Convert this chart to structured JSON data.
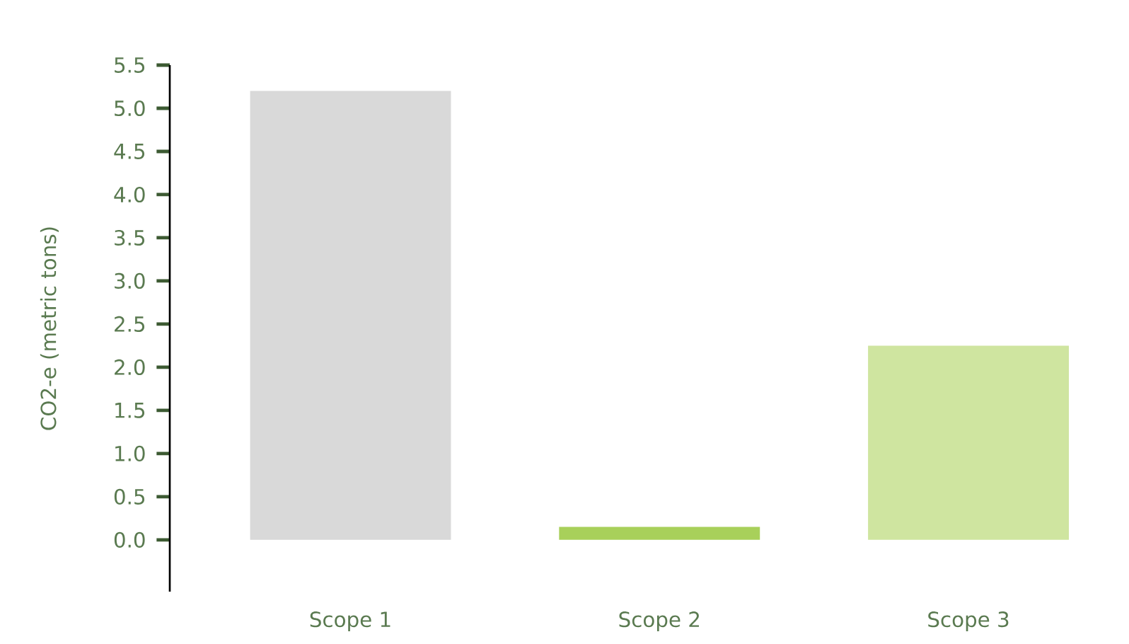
{
  "chart_data": {
    "type": "bar",
    "ylabel": "CO2-e (metric tons)",
    "categories": [
      "Scope 1",
      "Scope 2",
      "Scope 3"
    ],
    "values": [
      5.2,
      0.15,
      2.25
    ],
    "colors": [
      "#d9d9d9",
      "#a8d05a",
      "#cfe5a0"
    ],
    "ylim": [
      -0.6,
      5.5
    ],
    "yticks": [
      {
        "value": 0,
        "label": "0.0"
      },
      {
        "value": 0.5,
        "label": "0.5"
      },
      {
        "value": 1,
        "label": "1.0"
      },
      {
        "value": 1.5,
        "label": "1.5"
      },
      {
        "value": 2,
        "label": "2.0"
      },
      {
        "value": 2.5,
        "label": "2.5"
      },
      {
        "value": 3,
        "label": "3.0"
      },
      {
        "value": 3.5,
        "label": "3.5"
      },
      {
        "value": 4,
        "label": "4.0"
      },
      {
        "value": 4.5,
        "label": "4.5"
      },
      {
        "value": 5,
        "label": "5.0"
      },
      {
        "value": 5.5,
        "label": "5.5"
      }
    ],
    "grid": false
  }
}
